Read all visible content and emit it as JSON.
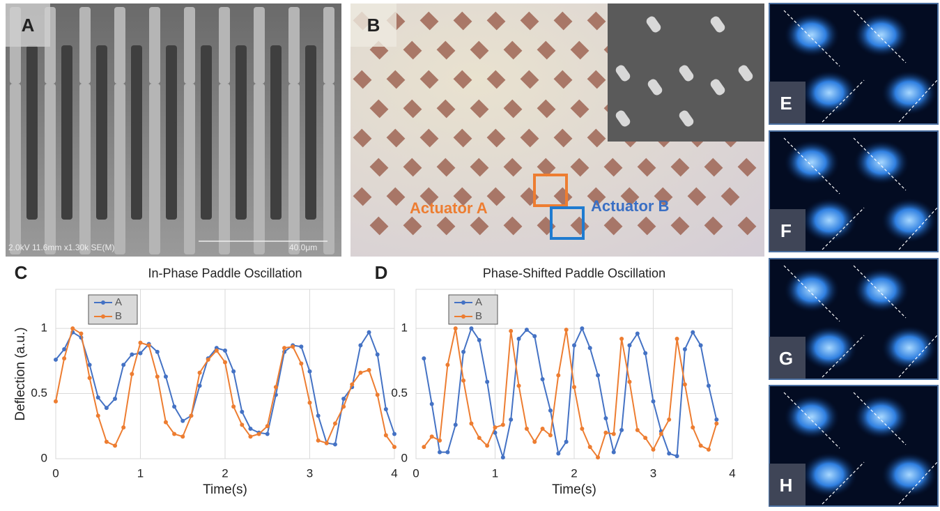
{
  "figure": {
    "panels": [
      {
        "label": "A",
        "caption": "2.0kV 11.6mm x1.30k SE(M)",
        "scale_bar": "40.0μm"
      },
      {
        "label": "B",
        "annotations": [
          "Actuator A",
          "Actuator B"
        ]
      },
      {
        "label": "E"
      },
      {
        "label": "F"
      },
      {
        "label": "G"
      },
      {
        "label": "H"
      }
    ]
  },
  "chart_data": [
    {
      "type": "line",
      "label": "C",
      "title": "In-Phase Paddle Oscillation",
      "x_label": "Time(s)",
      "y_label": "Deflection (a.u.)",
      "x": [
        0,
        0.1,
        0.2,
        0.3,
        0.4,
        0.5,
        0.6,
        0.7,
        0.8,
        0.9,
        1,
        1.1,
        1.2,
        1.3,
        1.4,
        1.5,
        1.6,
        1.7,
        1.8,
        1.9,
        2,
        2.1,
        2.2,
        2.3,
        2.4,
        2.5,
        2.6,
        2.7,
        2.8,
        2.9,
        3,
        3.1,
        3.2,
        3.3,
        3.4,
        3.5,
        3.6,
        3.7,
        3.8,
        3.9,
        4
      ],
      "xlim": [
        0,
        4
      ],
      "xticks": [
        0,
        1,
        2,
        3,
        4
      ],
      "ylim": [
        0,
        1.3
      ],
      "yticks": [
        0,
        0.5,
        1
      ],
      "grid": true,
      "legend": "upper left",
      "series": [
        {
          "name": "A",
          "color": "#4472c4",
          "values": [
            0.76,
            0.84,
            0.97,
            0.93,
            0.72,
            0.47,
            0.39,
            0.46,
            0.72,
            0.8,
            0.81,
            0.88,
            0.82,
            0.63,
            0.4,
            0.29,
            0.33,
            0.56,
            0.77,
            0.85,
            0.83,
            0.67,
            0.36,
            0.23,
            0.2,
            0.19,
            0.49,
            0.82,
            0.87,
            0.86,
            0.67,
            0.33,
            0.12,
            0.11,
            0.46,
            0.55,
            0.87,
            0.97,
            0.8,
            0.38,
            0.19
          ]
        },
        {
          "name": "B",
          "color": "#ed7d31",
          "values": [
            0.44,
            0.77,
            1.0,
            0.96,
            0.62,
            0.33,
            0.13,
            0.1,
            0.24,
            0.65,
            0.89,
            0.87,
            0.63,
            0.28,
            0.19,
            0.17,
            0.33,
            0.66,
            0.76,
            0.83,
            0.74,
            0.4,
            0.26,
            0.17,
            0.19,
            0.25,
            0.55,
            0.85,
            0.86,
            0.73,
            0.43,
            0.14,
            0.12,
            0.27,
            0.4,
            0.57,
            0.66,
            0.68,
            0.49,
            0.18,
            0.09
          ]
        }
      ]
    },
    {
      "type": "line",
      "label": "D",
      "title": "Phase-Shifted Paddle Oscillation",
      "x_label": "Time(s)",
      "x": [
        0.1,
        0.2,
        0.3,
        0.4,
        0.5,
        0.6,
        0.7,
        0.8,
        0.9,
        1,
        1.1,
        1.2,
        1.3,
        1.4,
        1.5,
        1.6,
        1.7,
        1.8,
        1.9,
        2,
        2.1,
        2.2,
        2.3,
        2.4,
        2.5,
        2.6,
        2.7,
        2.8,
        2.9,
        3,
        3.1,
        3.2,
        3.3,
        3.4,
        3.5,
        3.6,
        3.7,
        3.8
      ],
      "xlim": [
        0,
        4
      ],
      "xticks": [
        0,
        1,
        2,
        3,
        4
      ],
      "ylim": [
        0,
        1.3
      ],
      "yticks": [
        0,
        0.5,
        1
      ],
      "grid": true,
      "legend": "upper left",
      "series": [
        {
          "name": "A",
          "color": "#4472c4",
          "values": [
            0.77,
            0.42,
            0.05,
            0.05,
            0.26,
            0.82,
            1.0,
            0.91,
            0.59,
            0.2,
            0.01,
            0.3,
            0.92,
            0.99,
            0.94,
            0.61,
            0.37,
            0.04,
            0.13,
            0.87,
            1.0,
            0.85,
            0.64,
            0.31,
            0.05,
            0.22,
            0.87,
            0.96,
            0.81,
            0.44,
            0.21,
            0.04,
            0.02,
            0.84,
            0.97,
            0.87,
            0.56,
            0.3
          ]
        },
        {
          "name": "B",
          "color": "#ed7d31",
          "values": [
            0.09,
            0.17,
            0.14,
            0.72,
            1.0,
            0.6,
            0.27,
            0.16,
            0.1,
            0.24,
            0.26,
            0.98,
            0.56,
            0.23,
            0.13,
            0.23,
            0.18,
            0.64,
            0.99,
            0.55,
            0.23,
            0.09,
            0.01,
            0.2,
            0.19,
            0.92,
            0.59,
            0.22,
            0.16,
            0.07,
            0.19,
            0.3,
            0.92,
            0.57,
            0.24,
            0.1,
            0.07,
            0.27
          ]
        }
      ]
    }
  ]
}
